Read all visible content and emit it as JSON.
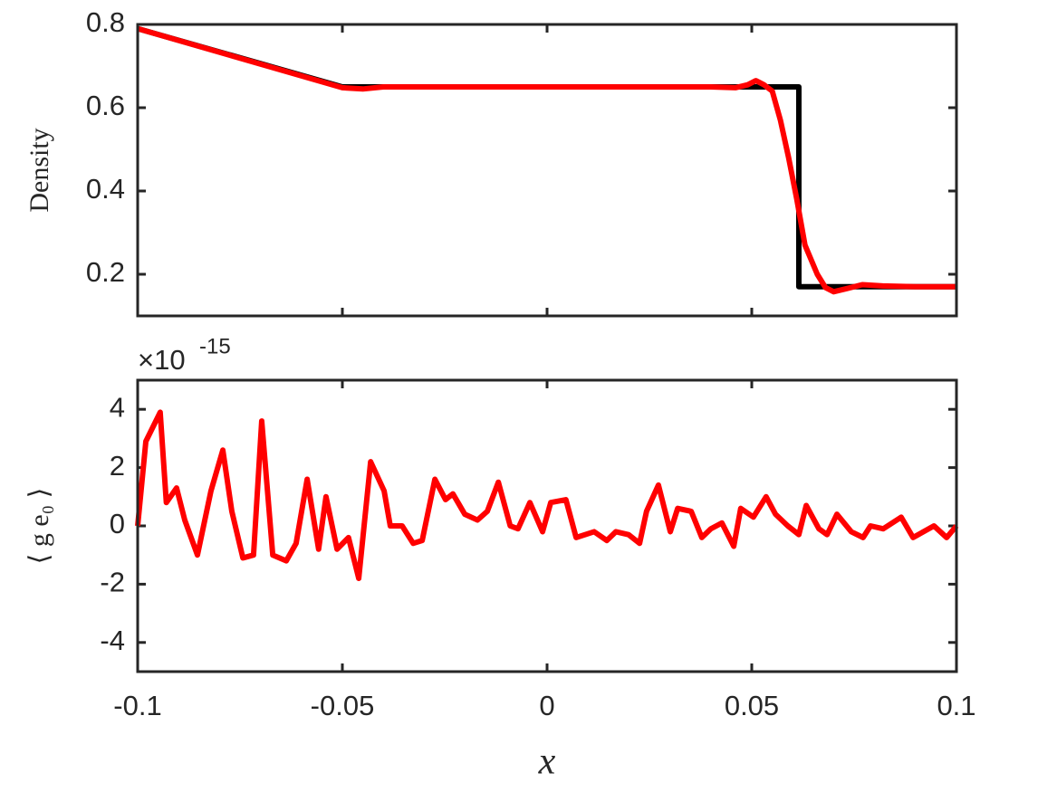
{
  "chart_data": [
    {
      "type": "line",
      "ylabel": "Density",
      "xlim": [
        -0.1,
        0.1
      ],
      "xticks": [
        -0.1,
        -0.05,
        0,
        0.05,
        0.1
      ],
      "ylim": [
        0.1,
        0.8
      ],
      "yticks": [
        0.2,
        0.4,
        0.6,
        0.8
      ],
      "series": [
        {
          "color": "#000000",
          "x": [
            -0.1,
            -0.05,
            0.0615,
            0.0615,
            0.1
          ],
          "values": [
            0.79,
            0.65,
            0.65,
            0.17,
            0.17
          ]
        },
        {
          "color": "#ff0000",
          "x": [
            -0.1,
            -0.05,
            -0.045,
            -0.04,
            0.04,
            0.046,
            0.049,
            0.051,
            0.053,
            0.055,
            0.057,
            0.059,
            0.061,
            0.063,
            0.066,
            0.068,
            0.07,
            0.073,
            0.077,
            0.082,
            0.09,
            0.1
          ],
          "values": [
            0.79,
            0.648,
            0.645,
            0.65,
            0.65,
            0.648,
            0.655,
            0.665,
            0.655,
            0.64,
            0.57,
            0.48,
            0.38,
            0.27,
            0.2,
            0.168,
            0.158,
            0.165,
            0.175,
            0.172,
            0.17,
            0.17
          ]
        }
      ]
    },
    {
      "type": "line",
      "ylabel": "⟨ g e₀ ⟩",
      "xlabel": "x",
      "exponent_base": "×10",
      "exponent_power": "-15",
      "xlim": [
        -0.1,
        0.1
      ],
      "xticks": [
        -0.1,
        -0.05,
        0,
        0.05,
        0.1
      ],
      "ylim": [
        -5,
        5
      ],
      "yticks": [
        -4,
        -2,
        0,
        2,
        4
      ],
      "series": [
        {
          "color": "#ff0000",
          "x": [
            -0.1,
            -0.098,
            -0.0945,
            -0.093,
            -0.0905,
            -0.0885,
            -0.0854,
            -0.0821,
            -0.0792,
            -0.077,
            -0.0743,
            -0.0717,
            -0.0697,
            -0.067,
            -0.0637,
            -0.0613,
            -0.0586,
            -0.0558,
            -0.054,
            -0.0513,
            -0.0485,
            -0.046,
            -0.0431,
            -0.0398,
            -0.0383,
            -0.0354,
            -0.0327,
            -0.0305,
            -0.0274,
            -0.0248,
            -0.023,
            -0.0201,
            -0.017,
            -0.0146,
            -0.0119,
            -0.009,
            -0.0071,
            -0.0042,
            -0.0011,
            0.0009,
            0.0046,
            0.0071,
            0.0115,
            0.0146,
            0.0168,
            0.0199,
            0.0226,
            0.0243,
            0.0272,
            0.0301,
            0.0319,
            0.0352,
            0.0378,
            0.04,
            0.0427,
            0.0456,
            0.0473,
            0.0504,
            0.0535,
            0.0558,
            0.0588,
            0.0615,
            0.0633,
            0.0664,
            0.0684,
            0.0708,
            0.0743,
            0.0772,
            0.079,
            0.0821,
            0.0865,
            0.0894,
            0.0945,
            0.0976,
            0.1
          ],
          "values": [
            0,
            2.9,
            3.9,
            0.8,
            1.3,
            0.2,
            -1.0,
            1.2,
            2.6,
            0.5,
            -1.1,
            -1.0,
            3.6,
            -1.0,
            -1.2,
            -0.6,
            1.6,
            -0.8,
            1.0,
            -0.8,
            -0.4,
            -1.8,
            2.2,
            1.2,
            0,
            0,
            -0.6,
            -0.5,
            1.6,
            0.9,
            1.1,
            0.4,
            0.2,
            0.5,
            1.5,
            0,
            -0.1,
            0.8,
            -0.2,
            0.8,
            0.9,
            -0.4,
            -0.2,
            -0.5,
            -0.2,
            -0.3,
            -0.6,
            0.5,
            1.4,
            -0.2,
            0.6,
            0.5,
            -0.4,
            -0.1,
            0.1,
            -0.7,
            0.6,
            0.3,
            1.0,
            0.4,
            0.0,
            -0.3,
            0.7,
            -0.1,
            -0.3,
            0.4,
            -0.2,
            -0.4,
            0,
            -0.1,
            0.3,
            -0.4,
            0.0,
            -0.4,
            0.0
          ]
        }
      ]
    }
  ]
}
